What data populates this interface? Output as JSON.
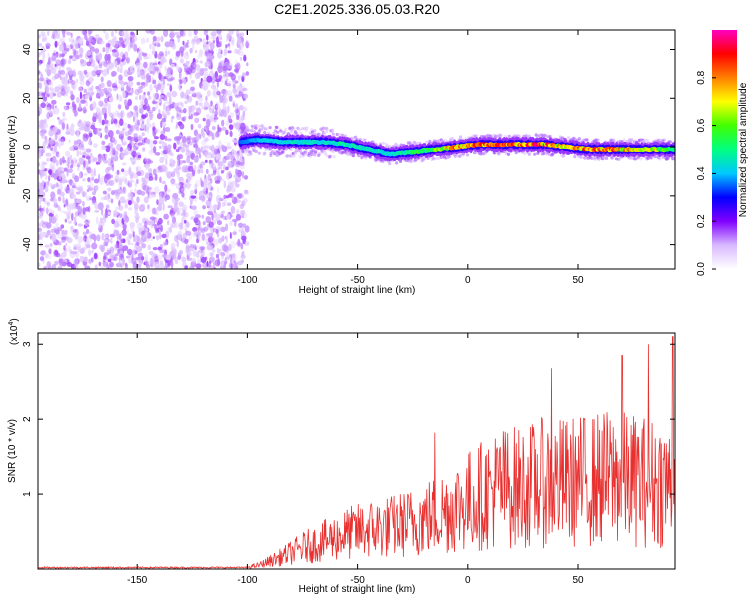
{
  "title": "C2E1.2025.336.05.03.R20",
  "colors": {
    "snr_line": "#e8302f",
    "frame": "#000000",
    "scatter_noise": "#7a10f0"
  },
  "chart_data": [
    {
      "type": "heatmap",
      "xlabel": "Height of straight line (km)",
      "ylabel": "Frequency (Hz)",
      "xlim": [
        -195,
        94
      ],
      "ylim": [
        -50,
        48
      ],
      "xticks": [
        -150,
        -100,
        -50,
        0,
        50
      ],
      "yticks": [
        -40,
        -20,
        0,
        20,
        40
      ],
      "colorbar": {
        "label": "Normalized spectral amplitude",
        "range": [
          0,
          1
        ],
        "ticks": [
          "0.0",
          "0.2",
          "0.4",
          "0.6",
          "0.8"
        ],
        "tick_values": [
          0.0,
          0.2,
          0.4,
          0.6,
          0.8
        ],
        "stops": [
          "#ffffff",
          "#d8b8ff",
          "#8000ff",
          "#0000ff",
          "#00c8ff",
          "#00ff80",
          "#40ff00",
          "#ffff00",
          "#ff8000",
          "#ff0000",
          "#ff00c0"
        ]
      },
      "noise_region_x": [
        -195,
        -100
      ],
      "signal_track": {
        "x": [
          -103,
          -95,
          -85,
          -75,
          -65,
          -55,
          -45,
          -35,
          -25,
          -15,
          -5,
          5,
          15,
          25,
          35,
          45,
          55,
          65,
          75,
          85,
          94
        ],
        "freq": [
          2,
          3,
          2,
          2,
          2,
          1,
          -1,
          -3,
          -2,
          -1,
          0,
          1,
          1,
          1,
          1,
          0,
          -1,
          -1,
          -1,
          -1,
          -1
        ],
        "amplitude": [
          0.35,
          0.4,
          0.45,
          0.45,
          0.45,
          0.5,
          0.45,
          0.45,
          0.55,
          0.6,
          0.85,
          0.85,
          0.85,
          0.9,
          0.9,
          0.75,
          0.85,
          0.85,
          0.75,
          0.7,
          0.5
        ]
      }
    },
    {
      "type": "line",
      "xlabel": "Height of straight line (km)",
      "ylabel": "SNR (10 * v/v)",
      "multiplier_label": "(x10",
      "multiplier_exp": "4",
      "multiplier_close": ")",
      "xlim": [
        -195,
        94
      ],
      "ylim": [
        0,
        3.15
      ],
      "xticks": [
        -150,
        -100,
        -50,
        0,
        50
      ],
      "yticks": [
        1,
        2,
        3
      ],
      "series": [
        {
          "name": "SNR",
          "envelope_x": [
            -195,
            -100,
            -95,
            -85,
            -75,
            -65,
            -55,
            -45,
            -35,
            -25,
            -15,
            -5,
            5,
            15,
            25,
            35,
            45,
            55,
            65,
            75,
            85,
            94
          ],
          "envelope_y": [
            0.03,
            0.04,
            0.08,
            0.25,
            0.45,
            0.6,
            0.75,
            0.85,
            0.9,
            1.0,
            1.15,
            1.35,
            1.55,
            1.75,
            1.75,
            1.85,
            1.85,
            1.9,
            1.95,
            1.9,
            1.85,
            1.8
          ],
          "peaks": [
            {
              "x": -15,
              "y": 1.82
            },
            {
              "x": 38,
              "y": 2.68
            },
            {
              "x": 70,
              "y": 2.85
            },
            {
              "x": 82,
              "y": 3.0
            },
            {
              "x": 93,
              "y": 3.1
            }
          ]
        }
      ]
    }
  ]
}
